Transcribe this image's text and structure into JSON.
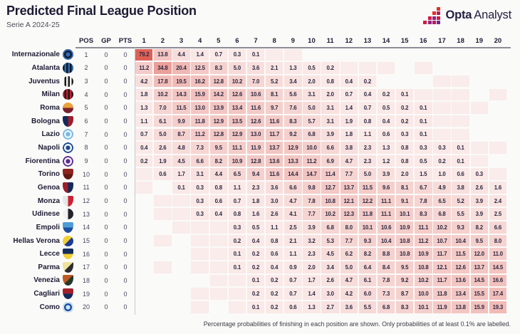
{
  "header": {
    "title": "Predicted Final League Position",
    "subtitle": "Serie A 2024-25"
  },
  "logo": {
    "opta": "Opta",
    "analyst": "Analyst",
    "palette": [
      "#e03228",
      "#d01c3f",
      "#b01f62",
      "#8d2585",
      "#6f2c91"
    ]
  },
  "footnote": "Percentage probabilities of finishing in each position are shown. Only probabilities of at least 0.1% are labelled.",
  "colors": {
    "cell_base": "#fbf0ef",
    "cell_max": "#df5f55",
    "blank_cell": "#f9ecea",
    "text_dark": "#2b2840"
  },
  "chart_data": {
    "type": "heatmap",
    "title": "Predicted Final League Position",
    "subtitle": "Serie A 2024-25",
    "stat_columns": [
      "POS",
      "GP",
      "PTS"
    ],
    "position_columns": [
      "1",
      "2",
      "3",
      "4",
      "5",
      "6",
      "7",
      "8",
      "9",
      "10",
      "11",
      "12",
      "13",
      "14",
      "15",
      "16",
      "17",
      "18",
      "19",
      "20"
    ],
    "legend_note": "values are percentage probabilities; \"\" = probability below 0.1%; null = zero probability",
    "teams": [
      {
        "name": "Internazionale",
        "pos": 1,
        "gp": 0,
        "pts": 0,
        "crest": {
          "shape": "circle",
          "style": "rings",
          "colors": [
            "#16182b",
            "#2e6bb4"
          ]
        },
        "probs": [
          79.2,
          13.8,
          4.4,
          1.4,
          0.7,
          0.3,
          0.1,
          "",
          "",
          null,
          null,
          null,
          null,
          null,
          null,
          null,
          null,
          null,
          null,
          null
        ]
      },
      {
        "name": "Atalanta",
        "pos": 2,
        "gp": 0,
        "pts": 0,
        "crest": {
          "shape": "circle",
          "style": "stripes",
          "colors": [
            "#111622",
            "#2a6cb3"
          ]
        },
        "probs": [
          11.2,
          34.8,
          20.4,
          12.5,
          8.3,
          5.0,
          3.6,
          2.1,
          1.3,
          0.5,
          0.2,
          "",
          "",
          "",
          null,
          "",
          null,
          null,
          null,
          null
        ]
      },
      {
        "name": "Juventus",
        "pos": 3,
        "gp": 0,
        "pts": 0,
        "crest": {
          "shape": "circle",
          "style": "stripes",
          "colors": [
            "#f5f5f5",
            "#1a1a1a"
          ]
        },
        "probs": [
          4.2,
          17.8,
          19.5,
          16.2,
          12.8,
          10.2,
          7.0,
          5.2,
          3.4,
          2.0,
          0.8,
          0.4,
          0.2,
          null,
          null,
          null,
          "",
          "",
          null,
          null
        ]
      },
      {
        "name": "Milan",
        "pos": 4,
        "gp": 0,
        "pts": 0,
        "crest": {
          "shape": "circle",
          "style": "stripes",
          "colors": [
            "#c2212e",
            "#16161c"
          ]
        },
        "probs": [
          1.8,
          10.2,
          14.3,
          15.9,
          14.2,
          12.6,
          10.6,
          8.1,
          5.6,
          3.1,
          2.0,
          0.7,
          0.4,
          0.2,
          0.1,
          "",
          "",
          "",
          null,
          ""
        ]
      },
      {
        "name": "Roma",
        "pos": 5,
        "gp": 0,
        "pts": 0,
        "crest": {
          "shape": "circle",
          "style": "split-h",
          "colors": [
            "#e9a23c",
            "#7e1f2e"
          ]
        },
        "probs": [
          1.3,
          7.0,
          11.5,
          13.0,
          13.9,
          13.4,
          11.6,
          9.7,
          7.6,
          5.0,
          3.1,
          1.4,
          0.7,
          0.5,
          0.2,
          0.1,
          "",
          "",
          "",
          null
        ]
      },
      {
        "name": "Bologna",
        "pos": 6,
        "gp": 0,
        "pts": 0,
        "crest": {
          "shape": "shield",
          "style": "split-v",
          "colors": [
            "#14295c",
            "#9c1f2b"
          ]
        },
        "probs": [
          1.1,
          6.1,
          9.9,
          11.8,
          12.9,
          13.5,
          12.6,
          11.6,
          8.3,
          5.7,
          3.1,
          1.9,
          0.8,
          0.4,
          0.2,
          0.1,
          "",
          "",
          null,
          null
        ]
      },
      {
        "name": "Lazio",
        "pos": 7,
        "gp": 0,
        "pts": 0,
        "crest": {
          "shape": "circle",
          "style": "rings",
          "colors": [
            "#e9f4fb",
            "#79b7e2"
          ]
        },
        "probs": [
          0.7,
          5.0,
          8.7,
          11.2,
          12.8,
          12.9,
          13.0,
          11.7,
          9.2,
          6.8,
          3.9,
          1.8,
          1.1,
          0.6,
          0.3,
          0.1,
          "",
          "",
          null,
          null
        ]
      },
      {
        "name": "Napoli",
        "pos": 8,
        "gp": 0,
        "pts": 0,
        "crest": {
          "shape": "circle",
          "style": "rings",
          "colors": [
            "#f7f9fc",
            "#1c4b8d"
          ]
        },
        "probs": [
          0.4,
          2.6,
          4.8,
          7.3,
          9.5,
          11.1,
          11.9,
          13.7,
          12.9,
          10.0,
          6.6,
          3.8,
          2.3,
          1.3,
          0.8,
          0.3,
          0.3,
          0.1,
          "",
          ""
        ]
      },
      {
        "name": "Fiorentina",
        "pos": 9,
        "gp": 0,
        "pts": 0,
        "crest": {
          "shape": "circle",
          "style": "rings",
          "colors": [
            "#f4f0fa",
            "#5c2b8e"
          ]
        },
        "probs": [
          0.2,
          1.9,
          4.5,
          6.6,
          8.2,
          10.9,
          12.8,
          13.6,
          13.3,
          11.2,
          6.9,
          4.7,
          2.3,
          1.2,
          0.8,
          0.5,
          0.2,
          0.1,
          "",
          null
        ]
      },
      {
        "name": "Torino",
        "pos": 10,
        "gp": 0,
        "pts": 0,
        "crest": {
          "shape": "shield",
          "style": "split-h",
          "colors": [
            "#8c2420",
            "#631613"
          ]
        },
        "probs": [
          "",
          0.6,
          1.7,
          3.1,
          4.4,
          6.5,
          9.4,
          11.6,
          14.4,
          14.7,
          11.4,
          7.7,
          5.0,
          3.9,
          2.0,
          1.5,
          1.0,
          0.6,
          0.3,
          ""
        ]
      },
      {
        "name": "Genoa",
        "pos": 11,
        "gp": 0,
        "pts": 0,
        "crest": {
          "shape": "shield",
          "style": "split-v",
          "colors": [
            "#9c1f2b",
            "#14295c"
          ]
        },
        "probs": [
          "",
          null,
          0.1,
          0.3,
          0.8,
          1.1,
          2.3,
          3.6,
          6.6,
          9.8,
          12.7,
          13.7,
          11.5,
          9.6,
          8.1,
          6.7,
          4.9,
          3.8,
          2.6,
          1.6
        ]
      },
      {
        "name": "Monza",
        "pos": 12,
        "gp": 0,
        "pts": 0,
        "crest": {
          "shape": "shield",
          "style": "split-v",
          "colors": [
            "#e6e6e6",
            "#cf2031"
          ]
        },
        "probs": [
          null,
          "",
          "",
          0.3,
          0.6,
          0.7,
          1.8,
          3.0,
          4.7,
          7.8,
          10.8,
          12.1,
          12.2,
          11.1,
          9.1,
          7.8,
          6.5,
          5.2,
          3.9,
          2.4
        ]
      },
      {
        "name": "Udinese",
        "pos": 13,
        "gp": 0,
        "pts": 0,
        "crest": {
          "shape": "circle",
          "style": "split-v",
          "colors": [
            "#f2f2f2",
            "#23232a"
          ]
        },
        "probs": [
          null,
          "",
          "",
          0.3,
          0.4,
          0.8,
          1.6,
          2.6,
          4.1,
          7.7,
          10.2,
          12.3,
          11.8,
          11.1,
          10.1,
          8.3,
          6.8,
          5.5,
          3.9,
          2.5
        ]
      },
      {
        "name": "Empoli",
        "pos": 14,
        "gp": 0,
        "pts": 0,
        "crest": {
          "shape": "shield",
          "style": "split-h",
          "colors": [
            "#4d9cd6",
            "#1d4f9e"
          ]
        },
        "probs": [
          null,
          null,
          "",
          "",
          "",
          0.3,
          0.5,
          1.1,
          2.5,
          3.9,
          6.8,
          8.0,
          10.1,
          10.6,
          10.9,
          11.1,
          10.2,
          9.3,
          8.2,
          6.6
        ]
      },
      {
        "name": "Hellas Verona",
        "pos": 15,
        "gp": 0,
        "pts": 0,
        "crest": {
          "shape": "circle",
          "style": "split-d",
          "colors": [
            "#f2cf35",
            "#1d3c8f"
          ]
        },
        "probs": [
          null,
          "",
          null,
          "",
          "",
          0.2,
          0.4,
          0.8,
          2.1,
          3.2,
          5.3,
          7.7,
          9.3,
          10.4,
          10.8,
          11.2,
          10.7,
          10.4,
          9.5,
          8.0
        ]
      },
      {
        "name": "Lecce",
        "pos": 16,
        "gp": 0,
        "pts": 0,
        "crest": {
          "shape": "shield",
          "style": "split-h",
          "colors": [
            "#122c5e",
            "#f2cf35"
          ]
        },
        "probs": [
          null,
          null,
          null,
          "",
          "",
          0.1,
          0.2,
          0.6,
          1.1,
          2.3,
          4.5,
          6.2,
          8.2,
          8.8,
          10.8,
          10.9,
          11.7,
          11.5,
          12.0,
          11.0
        ]
      },
      {
        "name": "Parma",
        "pos": 17,
        "gp": 0,
        "pts": 0,
        "crest": {
          "shape": "shield",
          "style": "split-d",
          "colors": [
            "#efe39c",
            "#2b2b33"
          ]
        },
        "probs": [
          null,
          "",
          null,
          "",
          "",
          0.1,
          0.2,
          0.4,
          0.9,
          2.0,
          3.4,
          5.0,
          6.4,
          8.4,
          9.5,
          10.8,
          12.1,
          12.6,
          13.7,
          14.5
        ]
      },
      {
        "name": "Venezia",
        "pos": 18,
        "gp": 0,
        "pts": 0,
        "crest": {
          "shape": "shield",
          "style": "split-d",
          "colors": [
            "#c05a20",
            "#203a2b"
          ]
        },
        "probs": [
          null,
          null,
          null,
          null,
          "",
          "",
          0.1,
          0.2,
          0.7,
          1.7,
          2.6,
          4.7,
          6.1,
          7.8,
          9.2,
          10.2,
          11.7,
          13.6,
          14.5,
          16.6
        ]
      },
      {
        "name": "Cagliari",
        "pos": 19,
        "gp": 0,
        "pts": 0,
        "crest": {
          "shape": "shield",
          "style": "split-h",
          "colors": [
            "#a21f2b",
            "#14295c"
          ]
        },
        "probs": [
          null,
          null,
          null,
          "",
          "",
          "",
          0.2,
          0.2,
          0.7,
          1.4,
          3.0,
          4.2,
          6.0,
          7.3,
          8.7,
          10.0,
          11.8,
          13.4,
          15.5,
          17.4
        ]
      },
      {
        "name": "Como",
        "pos": 20,
        "gp": 0,
        "pts": 0,
        "crest": {
          "shape": "circle",
          "style": "rings",
          "colors": [
            "#1d4f9e",
            "#cfe4f5"
          ]
        },
        "probs": [
          null,
          null,
          null,
          "",
          null,
          "",
          0.1,
          0.2,
          0.6,
          1.3,
          2.7,
          3.6,
          5.5,
          6.8,
          8.3,
          10.1,
          11.9,
          13.8,
          15.9,
          19.3
        ]
      }
    ]
  }
}
